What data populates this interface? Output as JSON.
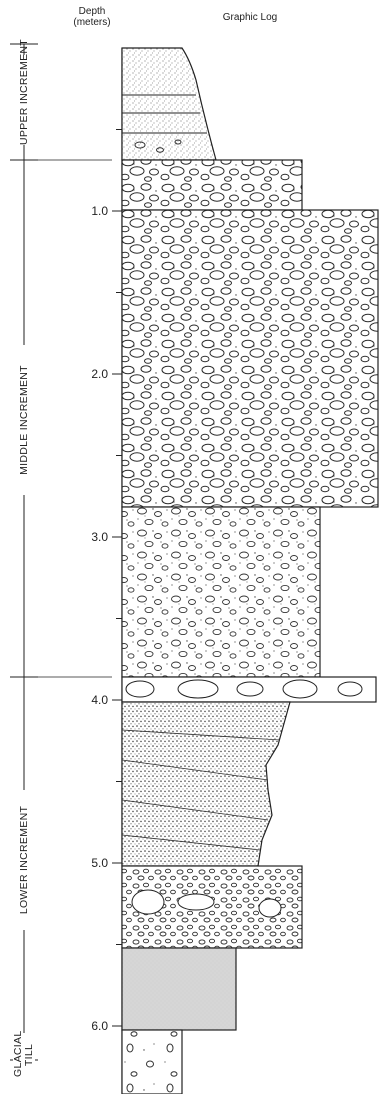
{
  "header": {
    "depth_line1": "Depth",
    "depth_line2": "(meters)",
    "graphic_log": "Graphic Log"
  },
  "increments": [
    {
      "label": "UPPER INCREMENT",
      "top": 0,
      "bottom": 0.9
    },
    {
      "label": "MIDDLE INCREMENT",
      "top": 0.9,
      "bottom": 4.15
    },
    {
      "label": "LOWER INCREMENT",
      "top": 4.15,
      "bottom": 6.3
    },
    {
      "label": "GLACIAL TILL",
      "top": 6.3,
      "bottom": 6.95
    }
  ],
  "depth_ticks": [
    "1.0",
    "2.0",
    "3.0",
    "4.0",
    "5.0",
    "6.0"
  ],
  "layers": [
    {
      "name": "upper-fine-sand",
      "top": 0.0,
      "bottom": 0.9,
      "pattern": "fine-sand"
    },
    {
      "name": "middle-coarse-gravel",
      "top": 0.9,
      "bottom": 1.15,
      "pattern": "coarse-gravel"
    },
    {
      "name": "middle-cobble-gravel",
      "top": 1.15,
      "bottom": 2.8,
      "pattern": "cobble-gravel"
    },
    {
      "name": "middle-pebbly-sand",
      "top": 2.8,
      "bottom": 4.05,
      "pattern": "pebbly-sand"
    },
    {
      "name": "cobble-lag",
      "top": 4.05,
      "bottom": 4.2,
      "pattern": "cobble-lag"
    },
    {
      "name": "lower-crossbedded-sand",
      "top": 4.2,
      "bottom": 5.05,
      "pattern": "crossbedded-sand"
    },
    {
      "name": "lower-gravel",
      "top": 5.05,
      "bottom": 5.55,
      "pattern": "gravel"
    },
    {
      "name": "lower-silt",
      "top": 5.55,
      "bottom": 6.1,
      "pattern": "silt"
    },
    {
      "name": "glacial-till",
      "top": 6.1,
      "bottom": 6.95,
      "pattern": "till"
    }
  ]
}
